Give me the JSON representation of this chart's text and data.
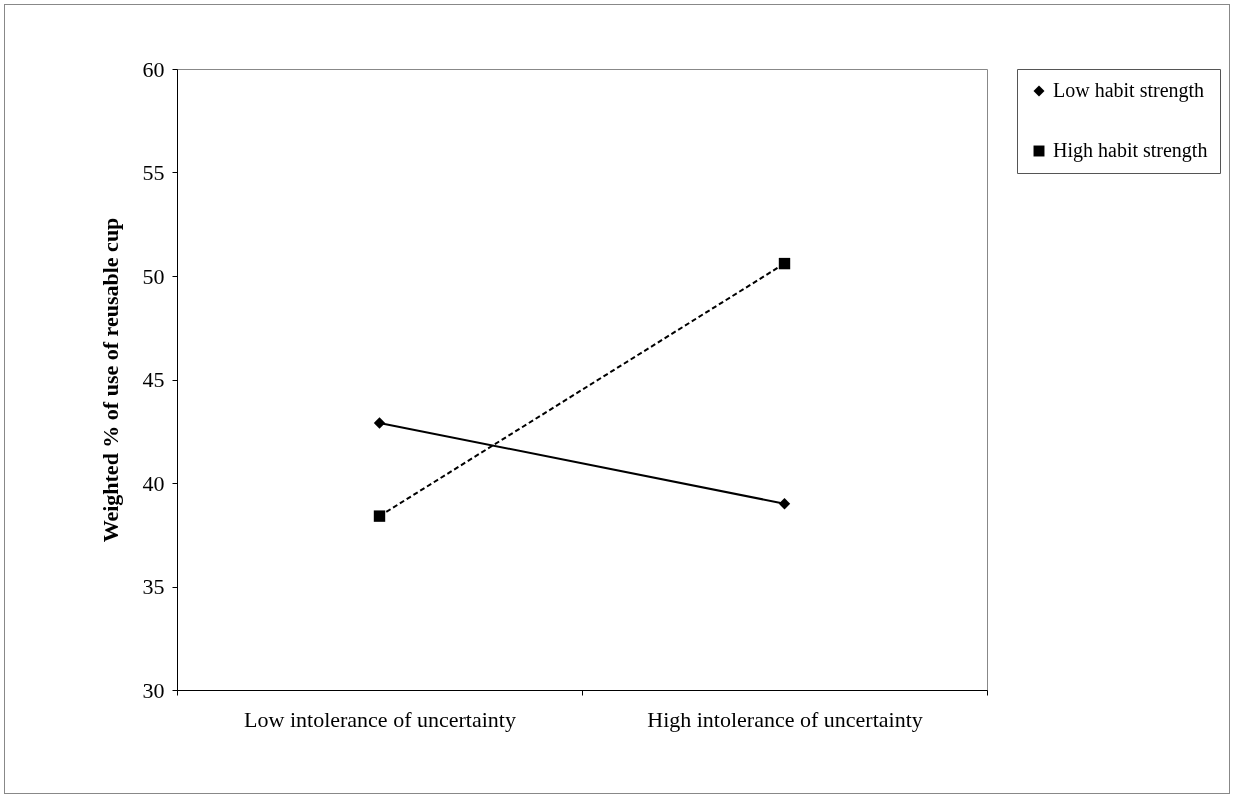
{
  "chart_data": {
    "type": "line",
    "ylabel": "Weighted % of use of reusable cup",
    "categories": [
      "Low intolerance of uncertainty",
      "High intolerance of uncertainty"
    ],
    "series": [
      {
        "name": "Low habit strength",
        "color": "#000000",
        "marker": "diamond",
        "line_style": "solid",
        "values": [
          42.9,
          39.0
        ]
      },
      {
        "name": "High habit strength",
        "color": "#000000",
        "marker": "square",
        "line_style": "dashed",
        "values": [
          38.4,
          50.6
        ]
      }
    ],
    "ylim": [
      30,
      60
    ],
    "yticks": [
      30,
      35,
      40,
      45,
      50,
      55,
      60
    ],
    "grid": false,
    "legend": "right"
  }
}
